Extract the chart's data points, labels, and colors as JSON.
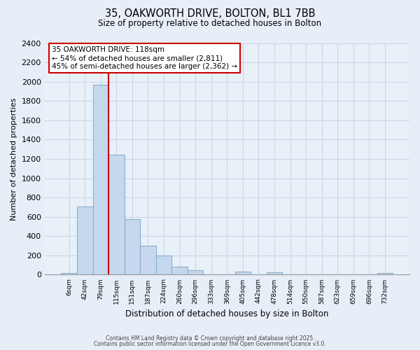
{
  "title_line1": "35, OAKWORTH DRIVE, BOLTON, BL1 7BB",
  "title_line2": "Size of property relative to detached houses in Bolton",
  "xlabel": "Distribution of detached houses by size in Bolton",
  "ylabel": "Number of detached properties",
  "bar_labels": [
    "6sqm",
    "42sqm",
    "79sqm",
    "115sqm",
    "151sqm",
    "187sqm",
    "224sqm",
    "260sqm",
    "296sqm",
    "333sqm",
    "369sqm",
    "405sqm",
    "442sqm",
    "478sqm",
    "514sqm",
    "550sqm",
    "587sqm",
    "623sqm",
    "659sqm",
    "696sqm",
    "732sqm"
  ],
  "bar_values": [
    15,
    710,
    1970,
    1240,
    575,
    300,
    200,
    80,
    45,
    0,
    0,
    35,
    0,
    25,
    0,
    0,
    0,
    0,
    0,
    0,
    15
  ],
  "bar_color": "#c5d8ee",
  "bar_edge_color": "#8ab0d0",
  "vline_color": "#cc0000",
  "annotation_title": "35 OAKWORTH DRIVE: 118sqm",
  "annotation_line1": "← 54% of detached houses are smaller (2,811)",
  "annotation_line2": "45% of semi-detached houses are larger (2,362) →",
  "annotation_box_color": "#ffffff",
  "annotation_box_edge": "#cc0000",
  "ylim": [
    0,
    2400
  ],
  "yticks": [
    0,
    200,
    400,
    600,
    800,
    1000,
    1200,
    1400,
    1600,
    1800,
    2000,
    2200,
    2400
  ],
  "footer_line1": "Contains HM Land Registry data © Crown copyright and database right 2025.",
  "footer_line2": "Contains public sector information licensed under the Open Government Licence v3.0.",
  "bg_color": "#e8eef8",
  "plot_bg_color": "#e8f0f8",
  "grid_color": "#c8d4e8"
}
